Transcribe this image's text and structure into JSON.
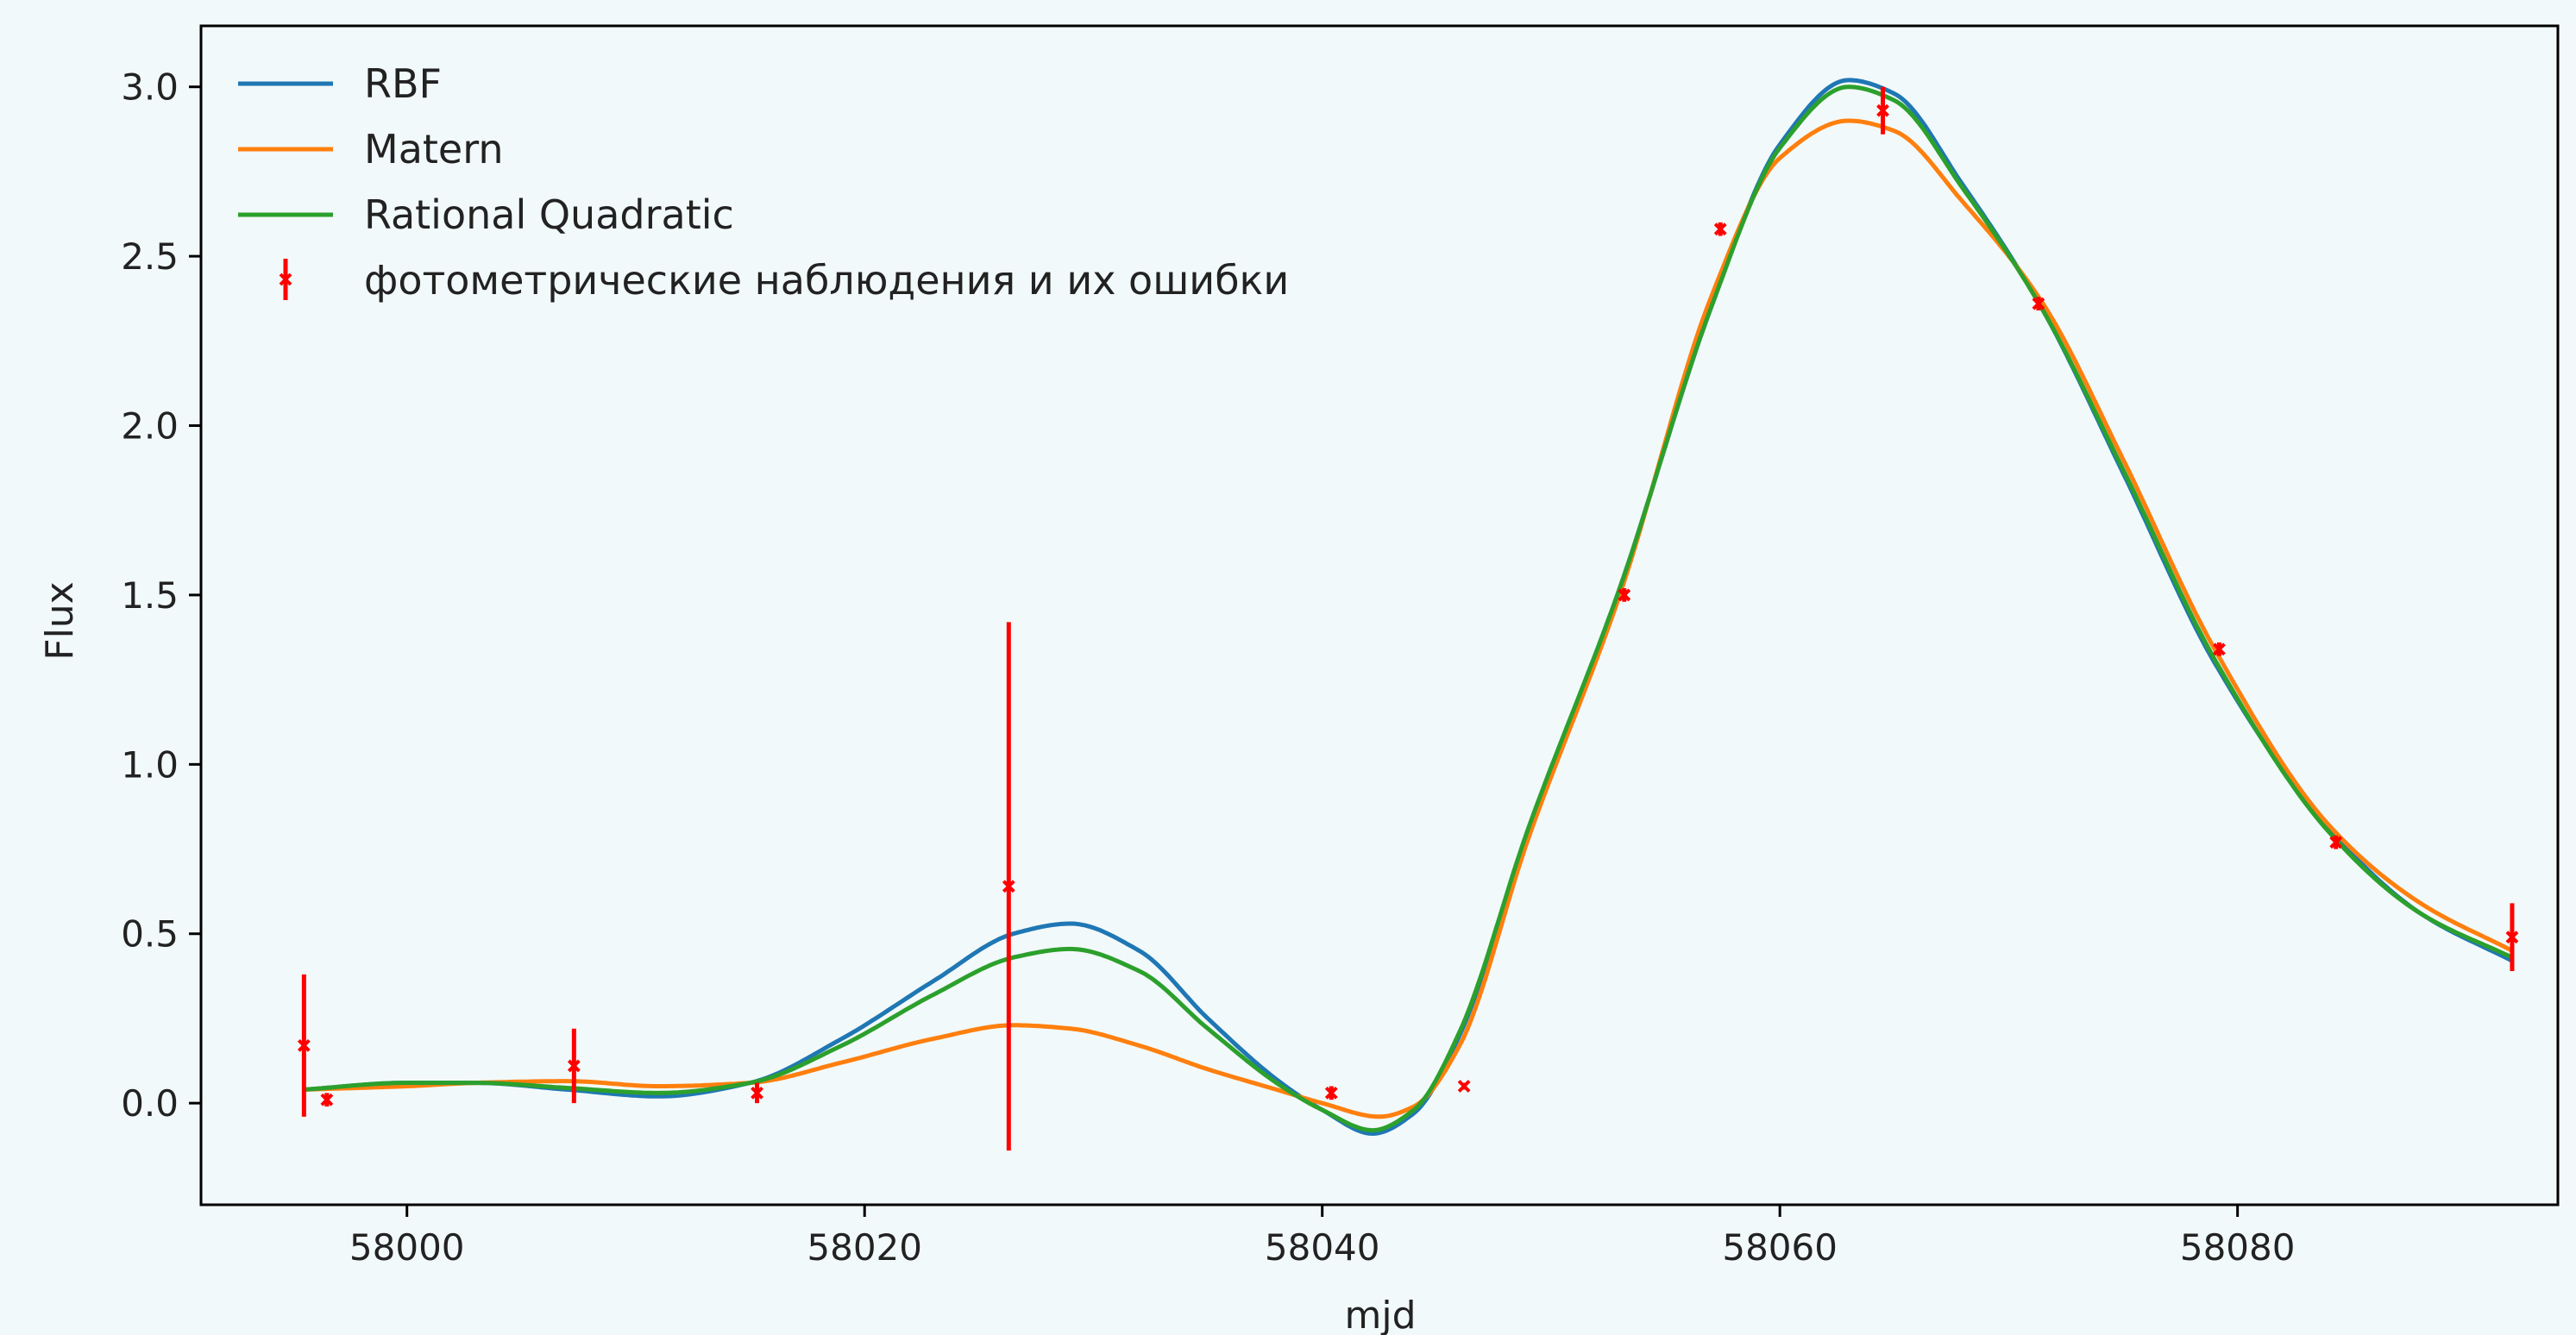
{
  "chart_data": {
    "type": "line",
    "title": "",
    "xlabel": "mjd",
    "ylabel": "Flux",
    "xlim": [
      57991,
      58094
    ],
    "ylim": [
      -0.3,
      3.18
    ],
    "grid": false,
    "legend_placement": "top-left",
    "x_ticks": [
      58000,
      58020,
      58040,
      58060,
      58080
    ],
    "y_ticks": [
      0.0,
      0.5,
      1.0,
      1.5,
      2.0,
      2.5,
      3.0
    ],
    "x_tick_labels": [
      "58000",
      "58020",
      "58040",
      "58060",
      "58080"
    ],
    "y_tick_labels": [
      "0.0",
      "0.5",
      "1.0",
      "1.5",
      "2.0",
      "2.5",
      "3.0"
    ],
    "series": [
      {
        "name": "RBF",
        "color": "#1f77b4",
        "x": [
          57995.5,
          58000,
          58003,
          58007,
          58011,
          58015,
          58019,
          58023,
          58026.5,
          58029,
          58032,
          58035,
          58038,
          58040,
          58042.2,
          58044,
          58046,
          58049,
          58053,
          58057,
          58060,
          58063,
          58065,
          58068,
          58071.5,
          58075,
          58079,
          58084,
          58088,
          58092
        ],
        "y": [
          0.04,
          0.06,
          0.06,
          0.04,
          0.02,
          0.06,
          0.19,
          0.36,
          0.5,
          0.53,
          0.45,
          0.25,
          0.07,
          -0.02,
          -0.09,
          -0.03,
          0.2,
          0.8,
          1.52,
          2.35,
          2.83,
          3.02,
          2.98,
          2.71,
          2.34,
          1.86,
          1.3,
          0.81,
          0.56,
          0.42
        ]
      },
      {
        "name": "Matern",
        "color": "#ff7f0e",
        "x": [
          57995.5,
          58000,
          58003,
          58007,
          58011,
          58015,
          58019,
          58023,
          58026.5,
          58029,
          58032,
          58035,
          58038,
          58040,
          58042.5,
          58044,
          58046,
          58049,
          58053,
          58057,
          58060,
          58063,
          58065,
          58068,
          58071.5,
          58075,
          58079,
          58084,
          58088,
          58092
        ],
        "y": [
          0.04,
          0.05,
          0.06,
          0.065,
          0.05,
          0.06,
          0.12,
          0.19,
          0.23,
          0.22,
          0.17,
          0.1,
          0.04,
          0.0,
          -0.04,
          -0.01,
          0.17,
          0.78,
          1.5,
          2.38,
          2.79,
          2.9,
          2.87,
          2.66,
          2.36,
          1.9,
          1.34,
          0.82,
          0.59,
          0.45
        ]
      },
      {
        "name": "Rational Quadratic",
        "color": "#2ca02c",
        "x": [
          57995.5,
          58000,
          58003,
          58007,
          58011,
          58015,
          58019,
          58023,
          58026.5,
          58029,
          58032,
          58035,
          58038,
          58040,
          58042.2,
          58044,
          58046,
          58049,
          58053,
          58057,
          58060,
          58063,
          58065,
          58068,
          58071.5,
          58075,
          58079,
          58084,
          58088,
          58092
        ],
        "y": [
          0.04,
          0.06,
          0.06,
          0.045,
          0.03,
          0.06,
          0.17,
          0.32,
          0.43,
          0.455,
          0.39,
          0.22,
          0.06,
          -0.02,
          -0.08,
          -0.02,
          0.21,
          0.81,
          1.52,
          2.35,
          2.82,
          3.0,
          2.96,
          2.7,
          2.34,
          1.87,
          1.31,
          0.8,
          0.56,
          0.43
        ]
      }
    ],
    "observations": {
      "name": "фотометрические наблюдения и их ошибки",
      "color": "#ff0000",
      "points": [
        {
          "x": 57995.5,
          "y": 0.17,
          "err": 0.21
        },
        {
          "x": 57996.5,
          "y": 0.01,
          "err": 0.02
        },
        {
          "x": 58007.3,
          "y": 0.11,
          "err": 0.11
        },
        {
          "x": 58015.3,
          "y": 0.03,
          "err": 0.03
        },
        {
          "x": 58026.3,
          "y": 0.64,
          "err": 0.78
        },
        {
          "x": 58040.4,
          "y": 0.03,
          "err": 0.02
        },
        {
          "x": 58046.2,
          "y": 0.05,
          "err": 0.01
        },
        {
          "x": 58053.2,
          "y": 1.5,
          "err": 0.02
        },
        {
          "x": 58057.4,
          "y": 2.58,
          "err": 0.02
        },
        {
          "x": 58064.5,
          "y": 2.93,
          "err": 0.07
        },
        {
          "x": 58071.3,
          "y": 2.36,
          "err": 0.02
        },
        {
          "x": 58079.2,
          "y": 1.34,
          "err": 0.02
        },
        {
          "x": 58084.3,
          "y": 0.77,
          "err": 0.02
        },
        {
          "x": 58092.0,
          "y": 0.49,
          "err": 0.1
        }
      ]
    }
  }
}
